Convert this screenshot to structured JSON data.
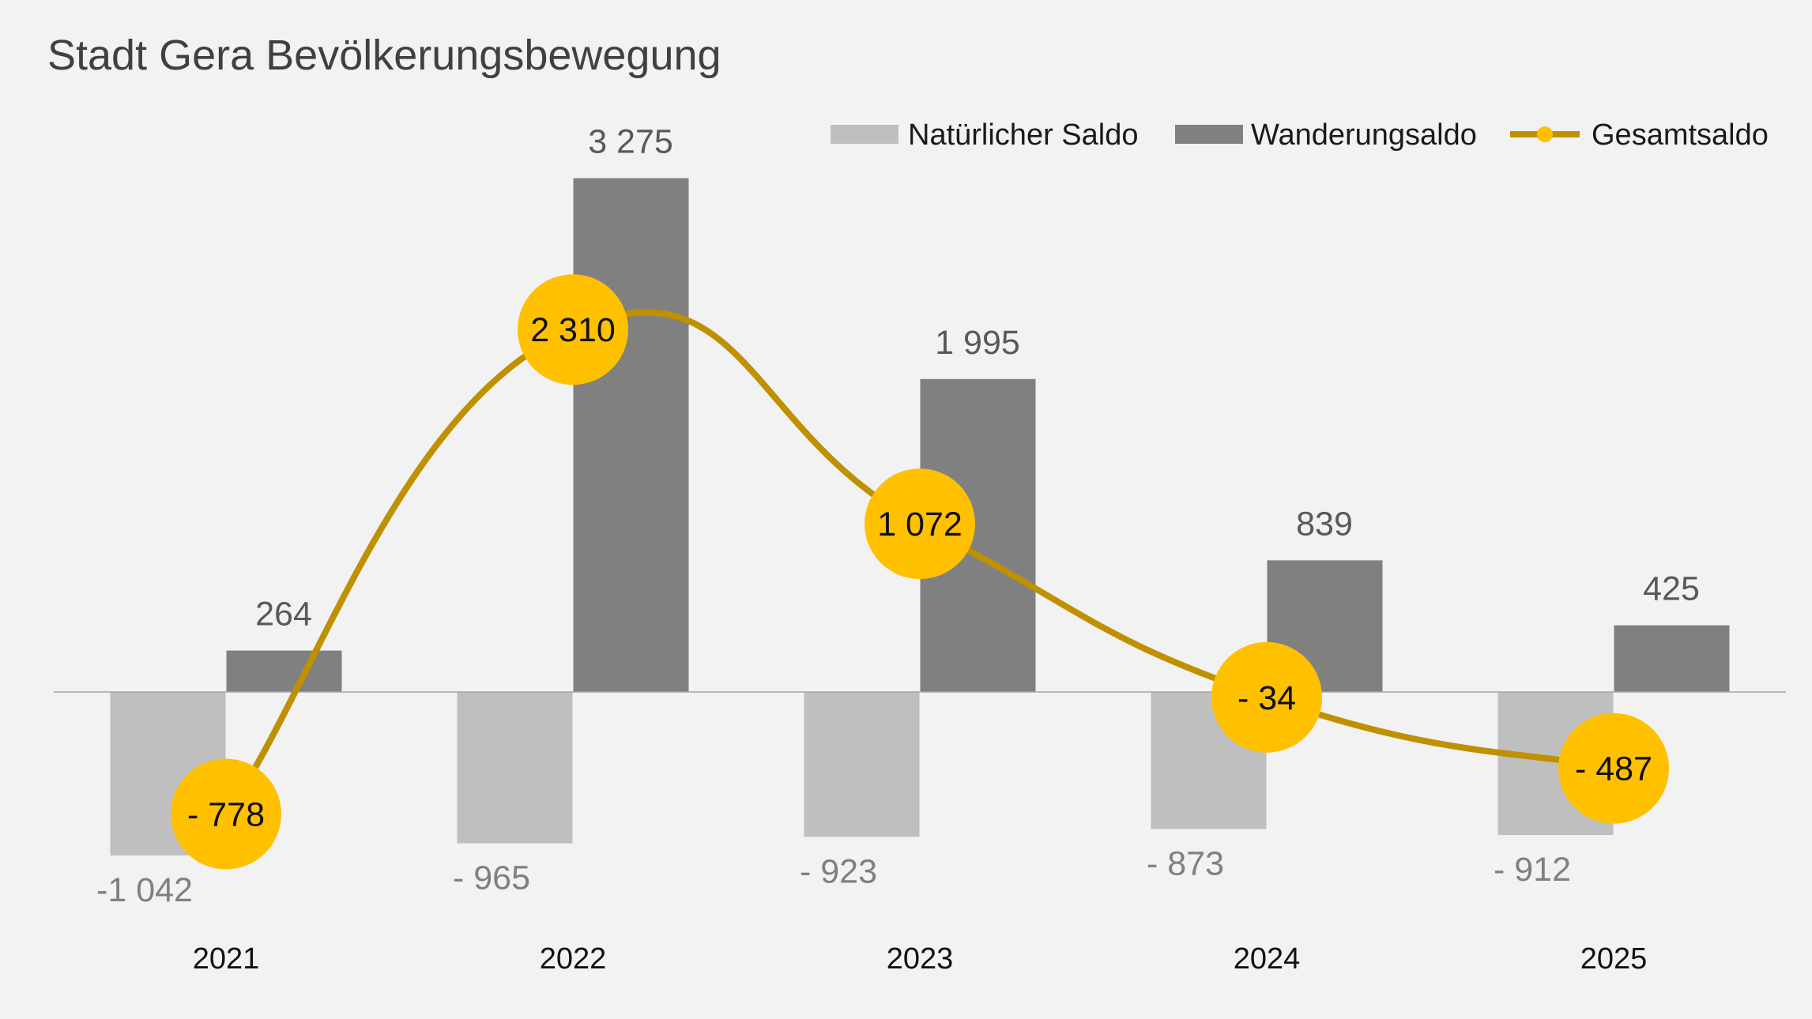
{
  "chart_data": {
    "type": "bar",
    "title": "Stadt Gera Bevölkerungsbewegung",
    "categories": [
      "2021",
      "2022",
      "2023",
      "2024",
      "2025"
    ],
    "series": [
      {
        "name": "Natürlicher Saldo",
        "type": "bar",
        "color": "#bfbfbf",
        "values": [
          -1042,
          -965,
          -923,
          -873,
          -912
        ],
        "labels": [
          "-1 042",
          "- 965",
          "- 923",
          "- 873",
          "- 912"
        ]
      },
      {
        "name": "Wanderungsaldo",
        "type": "bar",
        "color": "#808080",
        "values": [
          264,
          3275,
          1995,
          839,
          425
        ],
        "labels": [
          "264",
          "3 275",
          "1 995",
          "839",
          "425"
        ]
      },
      {
        "name": "Gesamtsaldo",
        "type": "line",
        "smooth": true,
        "color": "#bf9000",
        "marker_color": "#ffc000",
        "values": [
          -778,
          2310,
          1072,
          -34,
          -487
        ],
        "labels": [
          "- 778",
          "2 310",
          "1 072",
          "- 34",
          "- 487"
        ]
      }
    ],
    "legend_position": "top-right",
    "grid": false,
    "ylim": [
      -1500,
      3500
    ]
  }
}
